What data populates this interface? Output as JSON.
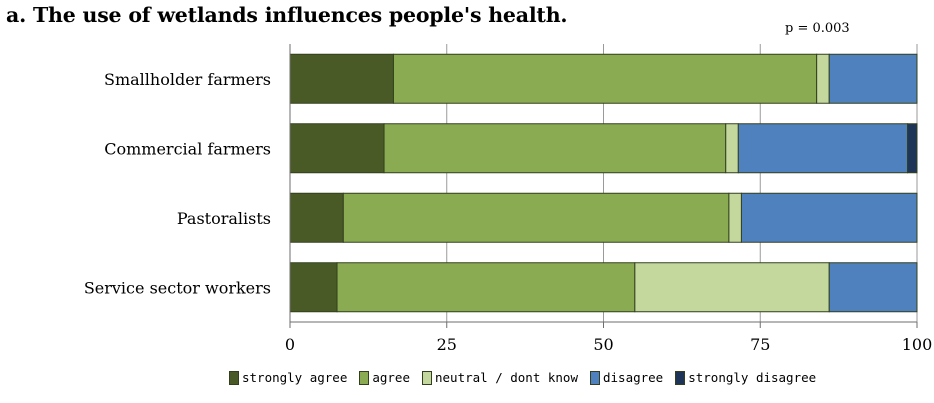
{
  "chart_data": {
    "type": "bar",
    "orientation": "horizontal",
    "stacked": true,
    "title": "a. The use of wetlands influences people's health.",
    "annotation": "p = 0.003",
    "categories": [
      "Smallholder farmers",
      "Commercial farmers",
      "Pastoralists",
      "Service sector workers"
    ],
    "series": [
      {
        "name": "strongly agree",
        "color": "#4a5a26",
        "values": [
          16.5,
          15,
          8.5,
          7.5
        ]
      },
      {
        "name": "agree",
        "color": "#8aab52",
        "values": [
          67.5,
          54.5,
          61.5,
          47.5
        ]
      },
      {
        "name": "neutral / dont know",
        "color": "#c4d89e",
        "values": [
          2,
          2,
          2,
          31
        ]
      },
      {
        "name": "disagree",
        "color": "#4e81bd",
        "values": [
          14,
          27,
          28,
          14
        ]
      },
      {
        "name": "strongly disagree",
        "color": "#1e3557",
        "values": [
          0,
          1.5,
          0,
          0
        ]
      }
    ],
    "xlim": [
      0,
      100
    ],
    "xticks": [
      "0",
      "25",
      "50",
      "75",
      "100"
    ],
    "grid": "vertical",
    "legend_position": "bottom"
  }
}
